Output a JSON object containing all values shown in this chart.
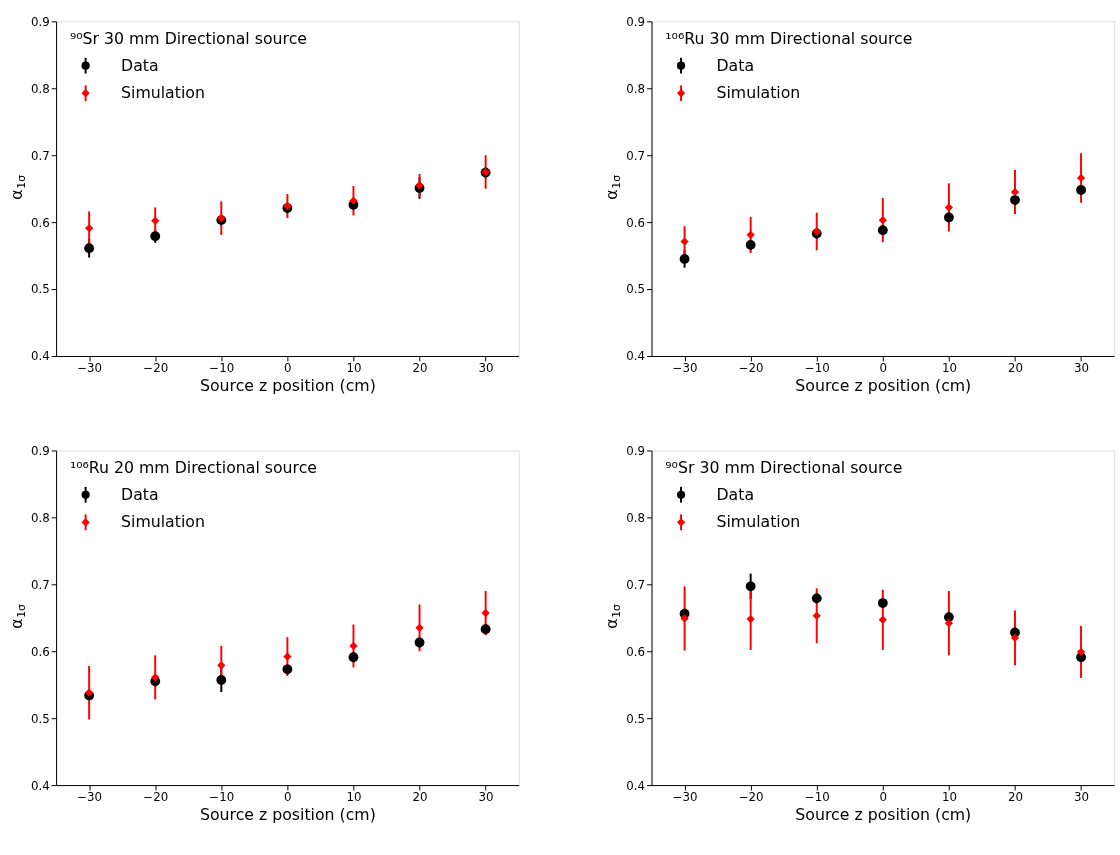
{
  "chart_data": [
    {
      "type": "scatter",
      "legend_title": "⁹⁰Sr 30 mm Directional source",
      "xlabel": "Source z position (cm)",
      "ylabel": "α$_{1σ}$",
      "x": [
        -30,
        -20,
        -10,
        0,
        10,
        20,
        30
      ],
      "xlim": [
        -35,
        35
      ],
      "xticks": [
        -30,
        -20,
        -10,
        0,
        10,
        20,
        30
      ],
      "ylim": [
        0.4,
        0.9
      ],
      "yticks": [
        0.4,
        0.5,
        0.6,
        0.7,
        0.8,
        0.9
      ],
      "grid": false,
      "legend": "top left",
      "series": [
        {
          "name": "Data",
          "color": "#000000",
          "marker": "circle",
          "values": [
            0.561,
            0.579,
            0.603,
            0.621,
            0.626,
            0.651,
            0.674
          ],
          "errors": [
            0.014,
            0.01,
            0.008,
            0.008,
            null,
            0.016,
            0.008
          ]
        },
        {
          "name": "Simulation",
          "color": "#ff0000",
          "marker": "diamond",
          "values": [
            0.591,
            0.602,
            0.606,
            0.624,
            0.632,
            0.655,
            0.675
          ],
          "errors": [
            0.025,
            0.02,
            0.025,
            0.018,
            0.022,
            0.017,
            0.025
          ]
        }
      ]
    },
    {
      "type": "scatter",
      "legend_title": "¹⁰⁶Ru 30 mm Directional source",
      "xlabel": "Source z position (cm)",
      "ylabel": "α$_{1σ}$",
      "x": [
        -30,
        -20,
        -10,
        0,
        10,
        20,
        30
      ],
      "xlim": [
        -35,
        35
      ],
      "xticks": [
        -30,
        -20,
        -10,
        0,
        10,
        20,
        30
      ],
      "ylim": [
        0.4,
        0.9
      ],
      "yticks": [
        0.4,
        0.5,
        0.6,
        0.7,
        0.8,
        0.9
      ],
      "grid": false,
      "legend": "top left",
      "series": [
        {
          "name": "Data",
          "color": "#000000",
          "marker": "circle",
          "values": [
            0.545,
            0.566,
            0.583,
            0.588,
            0.607,
            0.633,
            0.648
          ],
          "errors": [
            0.013,
            0.008,
            0.008,
            0.008,
            0.008,
            0.008,
            0.008
          ]
        },
        {
          "name": "Simulation",
          "color": "#ff0000",
          "marker": "diamond",
          "values": [
            0.571,
            0.581,
            0.586,
            0.603,
            0.622,
            0.645,
            0.666
          ],
          "errors": [
            0.023,
            0.027,
            0.028,
            0.033,
            0.036,
            0.033,
            0.037
          ]
        }
      ]
    },
    {
      "type": "scatter",
      "legend_title": "¹⁰⁶Ru 20 mm Directional source",
      "xlabel": "Source z position (cm)",
      "ylabel": "α$_{1σ}$",
      "x": [
        -30,
        -20,
        -10,
        0,
        10,
        20,
        30
      ],
      "xlim": [
        -35,
        35
      ],
      "xticks": [
        -30,
        -20,
        -10,
        0,
        10,
        20,
        30
      ],
      "ylim": [
        0.4,
        0.9
      ],
      "yticks": [
        0.4,
        0.5,
        0.6,
        0.7,
        0.8,
        0.9
      ],
      "grid": false,
      "legend": "top left",
      "series": [
        {
          "name": "Data",
          "color": "#000000",
          "marker": "circle",
          "values": [
            0.534,
            0.555,
            0.557,
            0.573,
            0.591,
            0.613,
            0.633
          ],
          "errors": [
            null,
            0.008,
            0.018,
            0.008,
            0.008,
            0.008,
            0.008
          ]
        },
        {
          "name": "Simulation",
          "color": "#ff0000",
          "marker": "diamond",
          "values": [
            0.538,
            0.561,
            0.579,
            0.592,
            0.608,
            0.635,
            0.657
          ],
          "errors": [
            0.04,
            0.033,
            0.029,
            0.029,
            0.032,
            0.035,
            0.033
          ]
        }
      ]
    },
    {
      "type": "scatter",
      "legend_title": "⁹⁰Sr 30 mm Directional source",
      "xlabel": "Source z position (cm)",
      "ylabel": "α$_{1σ}$",
      "x": [
        -30,
        -20,
        -10,
        0,
        10,
        20,
        30
      ],
      "xlim": [
        -35,
        35
      ],
      "xticks": [
        -30,
        -20,
        -10,
        0,
        10,
        20,
        30
      ],
      "ylim": [
        0.4,
        0.9
      ],
      "yticks": [
        0.4,
        0.5,
        0.6,
        0.7,
        0.8,
        0.9
      ],
      "grid": false,
      "legend": "top left",
      "series": [
        {
          "name": "Data",
          "color": "#000000",
          "marker": "circle",
          "values": [
            0.656,
            0.697,
            0.679,
            0.672,
            0.651,
            0.628,
            0.591
          ],
          "errors": [
            0.008,
            0.019,
            0.008,
            0.008,
            0.008,
            0.008,
            0.008
          ]
        },
        {
          "name": "Simulation",
          "color": "#ff0000",
          "marker": "diamond",
          "values": [
            0.649,
            0.648,
            0.653,
            0.647,
            0.642,
            0.62,
            0.599
          ],
          "errors": [
            0.048,
            0.046,
            0.041,
            0.045,
            0.048,
            0.041,
            0.039
          ]
        }
      ]
    }
  ]
}
